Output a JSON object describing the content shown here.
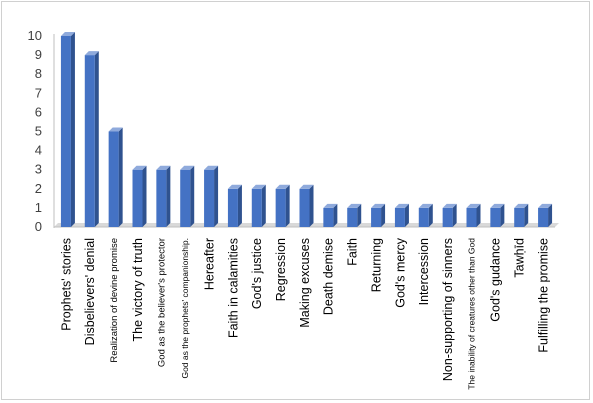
{
  "chart_data": {
    "type": "bar",
    "style": "3d-column",
    "categories": [
      "Prophets' stories",
      "Disbelievers' denial",
      "Realization of devine promise",
      "The victory of truth",
      "God as the believer's protector",
      "God as the prophets' companionship.",
      "Hereafter",
      "Faith in calamities",
      "God's justice",
      "Regression",
      "Making excuses",
      "Death demise",
      "Faith",
      "Returning",
      "God's mercy",
      "Intercession",
      "Non-supporting of sinners",
      "The inability of creatures other than God",
      "God's gudance",
      "Tawḥīd",
      "Fulfilling the promise"
    ],
    "values": [
      10,
      9,
      5,
      3,
      3,
      3,
      3,
      2,
      2,
      2,
      2,
      1,
      1,
      1,
      1,
      1,
      1,
      1,
      1,
      1,
      1
    ],
    "ylim": [
      0,
      10
    ],
    "yticks": [
      0,
      1,
      2,
      3,
      4,
      5,
      6,
      7,
      8,
      9,
      10
    ],
    "xlabel": "",
    "ylabel": "",
    "title": "",
    "grid": false,
    "legend": "none",
    "colors": {
      "bar_front": "#4472c4",
      "bar_side": "#2f528f",
      "bar_top": "#8faadc",
      "axis": "#bfbfbf",
      "floor": "#d9d9d9"
    }
  }
}
